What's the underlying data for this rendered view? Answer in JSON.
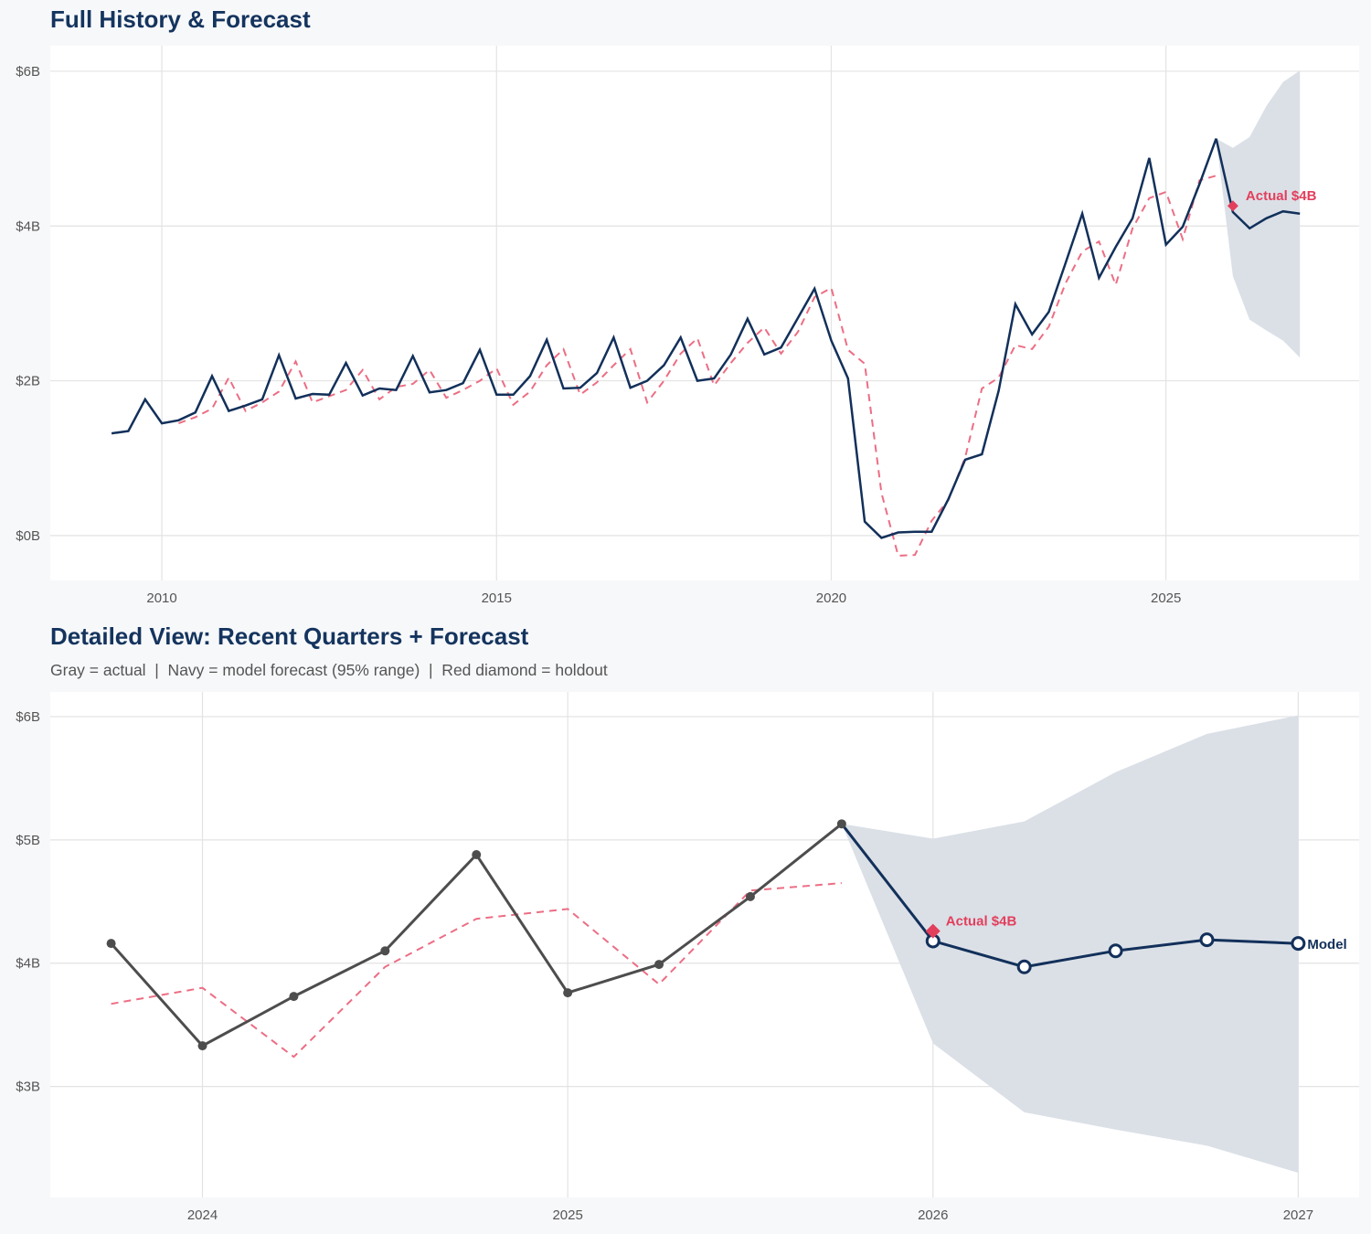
{
  "colors": {
    "navy": "#12305a",
    "gray": "#4d4d4d",
    "red": "#e23f5c",
    "red_dashed": "#ec6e84",
    "band": "#dbe0e7",
    "grid": "#e3e3e3",
    "title": "#14345e"
  },
  "chart_data": [
    {
      "type": "line",
      "title": "Full History & Forecast",
      "xlim": [
        "2008-05-01",
        "2027-11-20"
      ],
      "ylim": [
        -0.58,
        6.33
      ],
      "grid": true,
      "x_ticks": [
        {
          "x": "2010-01-01",
          "label": "2010"
        },
        {
          "x": "2015-01-01",
          "label": "2015"
        },
        {
          "x": "2020-01-01",
          "label": "2020"
        },
        {
          "x": "2025-01-01",
          "label": "2025"
        }
      ],
      "y_ticks": [
        {
          "y": 0,
          "label": "$0B"
        },
        {
          "y": 2,
          "label": "$2B"
        },
        {
          "y": 4,
          "label": "$4B"
        },
        {
          "y": 6,
          "label": "$6B"
        }
      ],
      "actual": {
        "color": "navy",
        "style": "solid",
        "markers": false,
        "points": [
          [
            "2009-04-01",
            1.32
          ],
          [
            "2009-07-01",
            1.35
          ],
          [
            "2009-10-01",
            1.76
          ],
          [
            "2010-01-01",
            1.45
          ],
          [
            "2010-04-01",
            1.49
          ],
          [
            "2010-07-01",
            1.59
          ],
          [
            "2010-10-01",
            2.06
          ],
          [
            "2011-01-01",
            1.61
          ],
          [
            "2011-04-01",
            1.68
          ],
          [
            "2011-07-01",
            1.76
          ],
          [
            "2011-10-01",
            2.33
          ],
          [
            "2012-01-01",
            1.77
          ],
          [
            "2012-04-01",
            1.83
          ],
          [
            "2012-07-01",
            1.82
          ],
          [
            "2012-10-01",
            2.23
          ],
          [
            "2013-01-01",
            1.81
          ],
          [
            "2013-04-01",
            1.9
          ],
          [
            "2013-07-01",
            1.88
          ],
          [
            "2013-10-01",
            2.32
          ],
          [
            "2014-01-01",
            1.85
          ],
          [
            "2014-04-01",
            1.88
          ],
          [
            "2014-07-01",
            1.97
          ],
          [
            "2014-10-01",
            2.4
          ],
          [
            "2015-01-01",
            1.82
          ],
          [
            "2015-04-01",
            1.82
          ],
          [
            "2015-07-01",
            2.06
          ],
          [
            "2015-10-01",
            2.53
          ],
          [
            "2016-01-01",
            1.9
          ],
          [
            "2016-04-01",
            1.91
          ],
          [
            "2016-07-01",
            2.1
          ],
          [
            "2016-10-01",
            2.56
          ],
          [
            "2017-01-01",
            1.91
          ],
          [
            "2017-04-01",
            2.0
          ],
          [
            "2017-07-01",
            2.2
          ],
          [
            "2017-10-01",
            2.56
          ],
          [
            "2018-01-01",
            2.0
          ],
          [
            "2018-04-01",
            2.03
          ],
          [
            "2018-07-01",
            2.34
          ],
          [
            "2018-10-01",
            2.8
          ],
          [
            "2019-01-01",
            2.34
          ],
          [
            "2019-04-01",
            2.43
          ],
          [
            "2019-07-01",
            2.81
          ],
          [
            "2019-10-01",
            3.19
          ],
          [
            "2020-01-01",
            2.52
          ],
          [
            "2020-04-01",
            2.03
          ],
          [
            "2020-07-01",
            0.18
          ],
          [
            "2020-10-01",
            -0.03
          ],
          [
            "2021-01-01",
            0.04
          ],
          [
            "2021-04-01",
            0.05
          ],
          [
            "2021-07-01",
            0.05
          ],
          [
            "2021-10-01",
            0.47
          ],
          [
            "2022-01-01",
            0.98
          ],
          [
            "2022-04-01",
            1.05
          ],
          [
            "2022-07-01",
            1.87
          ],
          [
            "2022-10-01",
            2.99
          ],
          [
            "2023-01-01",
            2.6
          ],
          [
            "2023-04-01",
            2.89
          ],
          [
            "2023-07-01",
            3.52
          ],
          [
            "2023-10-01",
            4.16
          ],
          [
            "2024-01-01",
            3.33
          ],
          [
            "2024-04-01",
            3.73
          ],
          [
            "2024-07-01",
            4.1
          ],
          [
            "2024-10-01",
            4.88
          ],
          [
            "2025-01-01",
            3.76
          ],
          [
            "2025-04-01",
            3.99
          ],
          [
            "2025-07-01",
            4.54
          ],
          [
            "2025-10-01",
            5.13
          ]
        ]
      },
      "fitted": {
        "color": "red_dashed",
        "style": "dashed",
        "points": [
          [
            "2010-04-01",
            1.45
          ],
          [
            "2010-07-01",
            1.53
          ],
          [
            "2010-10-01",
            1.64
          ],
          [
            "2011-01-01",
            2.04
          ],
          [
            "2011-04-01",
            1.61
          ],
          [
            "2011-07-01",
            1.72
          ],
          [
            "2011-10-01",
            1.86
          ],
          [
            "2012-01-01",
            2.25
          ],
          [
            "2012-04-01",
            1.72
          ],
          [
            "2012-07-01",
            1.8
          ],
          [
            "2012-10-01",
            1.88
          ],
          [
            "2013-01-01",
            2.14
          ],
          [
            "2013-04-01",
            1.76
          ],
          [
            "2013-07-01",
            1.92
          ],
          [
            "2013-10-01",
            1.96
          ],
          [
            "2014-01-01",
            2.14
          ],
          [
            "2014-04-01",
            1.78
          ],
          [
            "2014-07-01",
            1.88
          ],
          [
            "2014-10-01",
            2.0
          ],
          [
            "2015-01-01",
            2.16
          ],
          [
            "2015-04-01",
            1.69
          ],
          [
            "2015-07-01",
            1.86
          ],
          [
            "2015-10-01",
            2.2
          ],
          [
            "2016-01-01",
            2.41
          ],
          [
            "2016-04-01",
            1.82
          ],
          [
            "2016-07-01",
            1.98
          ],
          [
            "2016-10-01",
            2.2
          ],
          [
            "2017-01-01",
            2.41
          ],
          [
            "2017-04-01",
            1.72
          ],
          [
            "2017-07-01",
            2.0
          ],
          [
            "2017-10-01",
            2.35
          ],
          [
            "2018-01-01",
            2.55
          ],
          [
            "2018-04-01",
            1.94
          ],
          [
            "2018-07-01",
            2.23
          ],
          [
            "2018-10-01",
            2.49
          ],
          [
            "2019-01-01",
            2.69
          ],
          [
            "2019-04-01",
            2.35
          ],
          [
            "2019-07-01",
            2.63
          ],
          [
            "2019-10-01",
            3.08
          ],
          [
            "2020-01-01",
            3.2
          ],
          [
            "2020-04-01",
            2.4
          ],
          [
            "2020-07-01",
            2.22
          ],
          [
            "2020-10-01",
            0.55
          ],
          [
            "2021-01-01",
            -0.26
          ],
          [
            "2021-04-01",
            -0.25
          ],
          [
            "2021-07-01",
            0.19
          ],
          [
            "2021-10-01",
            0.46
          ],
          [
            "2022-01-01",
            1.01
          ],
          [
            "2022-04-01",
            1.9
          ],
          [
            "2022-07-01",
            2.04
          ],
          [
            "2022-10-01",
            2.46
          ],
          [
            "2023-01-01",
            2.41
          ],
          [
            "2023-04-01",
            2.7
          ],
          [
            "2023-07-01",
            3.26
          ],
          [
            "2023-10-01",
            3.67
          ],
          [
            "2024-01-01",
            3.8
          ],
          [
            "2024-04-01",
            3.24
          ],
          [
            "2024-07-01",
            3.97
          ],
          [
            "2024-10-01",
            4.36
          ],
          [
            "2025-01-01",
            4.44
          ],
          [
            "2025-04-01",
            3.83
          ],
          [
            "2025-07-01",
            4.59
          ],
          [
            "2025-10-01",
            4.65
          ]
        ]
      },
      "forecast": {
        "color": "navy",
        "markers": false,
        "points": [
          [
            "2025-10-01",
            5.13
          ],
          [
            "2026-01-01",
            4.18
          ],
          [
            "2026-04-01",
            3.97
          ],
          [
            "2026-07-01",
            4.1
          ],
          [
            "2026-10-01",
            4.19
          ],
          [
            "2027-01-01",
            4.16
          ]
        ]
      },
      "band_95": {
        "lower": [
          [
            "2025-10-01",
            5.13
          ],
          [
            "2026-01-01",
            3.35
          ],
          [
            "2026-04-01",
            2.79
          ],
          [
            "2026-07-01",
            2.65
          ],
          [
            "2026-10-01",
            2.52
          ],
          [
            "2027-01-01",
            2.3
          ]
        ],
        "upper": [
          [
            "2025-10-01",
            5.13
          ],
          [
            "2026-01-01",
            5.01
          ],
          [
            "2026-04-01",
            5.15
          ],
          [
            "2026-07-01",
            5.55
          ],
          [
            "2026-10-01",
            5.86
          ],
          [
            "2027-01-01",
            6.01
          ]
        ]
      },
      "holdout": {
        "x": "2026-01-01",
        "y": 4.26,
        "marker": "diamond",
        "label": "Actual $4B"
      }
    },
    {
      "type": "line",
      "title": "Detailed View: Recent Quarters + Forecast",
      "subtitle": "Gray = actual  |  Navy = model forecast (95% range)  |  Red diamond = holdout",
      "xlim": [
        "2023-08-01",
        "2027-03-01"
      ],
      "ylim": [
        2.1,
        6.2
      ],
      "grid": true,
      "x_ticks": [
        {
          "x": "2024-01-01",
          "label": "2024"
        },
        {
          "x": "2025-01-01",
          "label": "2025"
        },
        {
          "x": "2026-01-01",
          "label": "2026"
        },
        {
          "x": "2027-01-01",
          "label": "2027"
        }
      ],
      "y_ticks": [
        {
          "y": 3,
          "label": "$3B"
        },
        {
          "y": 4,
          "label": "$4B"
        },
        {
          "y": 5,
          "label": "$5B"
        },
        {
          "y": 6,
          "label": "$6B"
        }
      ],
      "actual": {
        "color": "gray",
        "style": "solid",
        "markers": true,
        "points": [
          [
            "2023-10-01",
            4.16
          ],
          [
            "2024-01-01",
            3.33
          ],
          [
            "2024-04-01",
            3.73
          ],
          [
            "2024-07-01",
            4.1
          ],
          [
            "2024-10-01",
            4.88
          ],
          [
            "2025-01-01",
            3.76
          ],
          [
            "2025-04-01",
            3.99
          ],
          [
            "2025-07-01",
            4.54
          ],
          [
            "2025-10-01",
            5.13
          ]
        ]
      },
      "fitted": {
        "color": "red_dashed",
        "style": "dashed",
        "points": [
          [
            "2023-10-01",
            3.67
          ],
          [
            "2024-01-01",
            3.8
          ],
          [
            "2024-04-01",
            3.24
          ],
          [
            "2024-07-01",
            3.97
          ],
          [
            "2024-10-01",
            4.36
          ],
          [
            "2025-01-01",
            4.44
          ],
          [
            "2025-04-01",
            3.83
          ],
          [
            "2025-07-01",
            4.59
          ],
          [
            "2025-10-01",
            4.65
          ]
        ]
      },
      "forecast": {
        "color": "navy",
        "markers": true,
        "label": "Model",
        "points": [
          [
            "2025-10-01",
            5.13
          ],
          [
            "2026-01-01",
            4.18
          ],
          [
            "2026-04-01",
            3.97
          ],
          [
            "2026-07-01",
            4.1
          ],
          [
            "2026-10-01",
            4.19
          ],
          [
            "2027-01-01",
            4.16
          ]
        ]
      },
      "band_95": {
        "lower": [
          [
            "2025-10-01",
            5.13
          ],
          [
            "2026-01-01",
            3.35
          ],
          [
            "2026-04-01",
            2.79
          ],
          [
            "2026-07-01",
            2.65
          ],
          [
            "2026-10-01",
            2.52
          ],
          [
            "2027-01-01",
            2.3
          ]
        ],
        "upper": [
          [
            "2025-10-01",
            5.13
          ],
          [
            "2026-01-01",
            5.01
          ],
          [
            "2026-04-01",
            5.15
          ],
          [
            "2026-07-01",
            5.55
          ],
          [
            "2026-10-01",
            5.86
          ],
          [
            "2027-01-01",
            6.01
          ]
        ]
      },
      "holdout": {
        "x": "2026-01-01",
        "y": 4.26,
        "marker": "diamond",
        "label": "Actual $4B"
      }
    }
  ]
}
